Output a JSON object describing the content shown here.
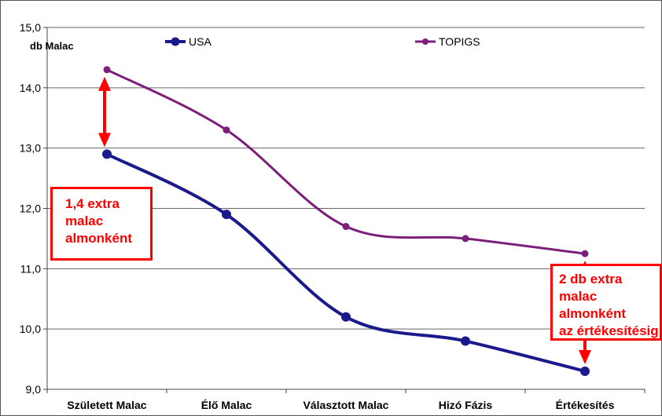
{
  "chart_data": {
    "type": "line",
    "unit_label": "db Malac",
    "categories": [
      "Született Malac",
      "Élő Malac",
      "Választott Malac",
      "Hizó Fázis",
      "Értékesítés"
    ],
    "series": [
      {
        "name": "USA",
        "color": "#1a1a8c",
        "values": [
          12.9,
          11.9,
          10.2,
          9.8,
          9.3
        ]
      },
      {
        "name": "TOPIGS",
        "color": "#7b1f7b",
        "values": [
          14.3,
          13.3,
          11.7,
          11.5,
          11.25
        ]
      }
    ],
    "ylim": [
      9.0,
      15.0
    ],
    "yticks": [
      "9,0",
      "10,0",
      "11,0",
      "12,0",
      "13,0",
      "14,0",
      "15,0"
    ],
    "grid": true,
    "legend_position": "top",
    "annotations": [
      {
        "text": "1,4 extra\nmalac\nalmonként",
        "color": "#ff0000"
      },
      {
        "text": "2 db extra\nmalac almonként\naz értékesítésig",
        "color": "#ff0000"
      }
    ],
    "arrow_color": "#ff0000"
  }
}
